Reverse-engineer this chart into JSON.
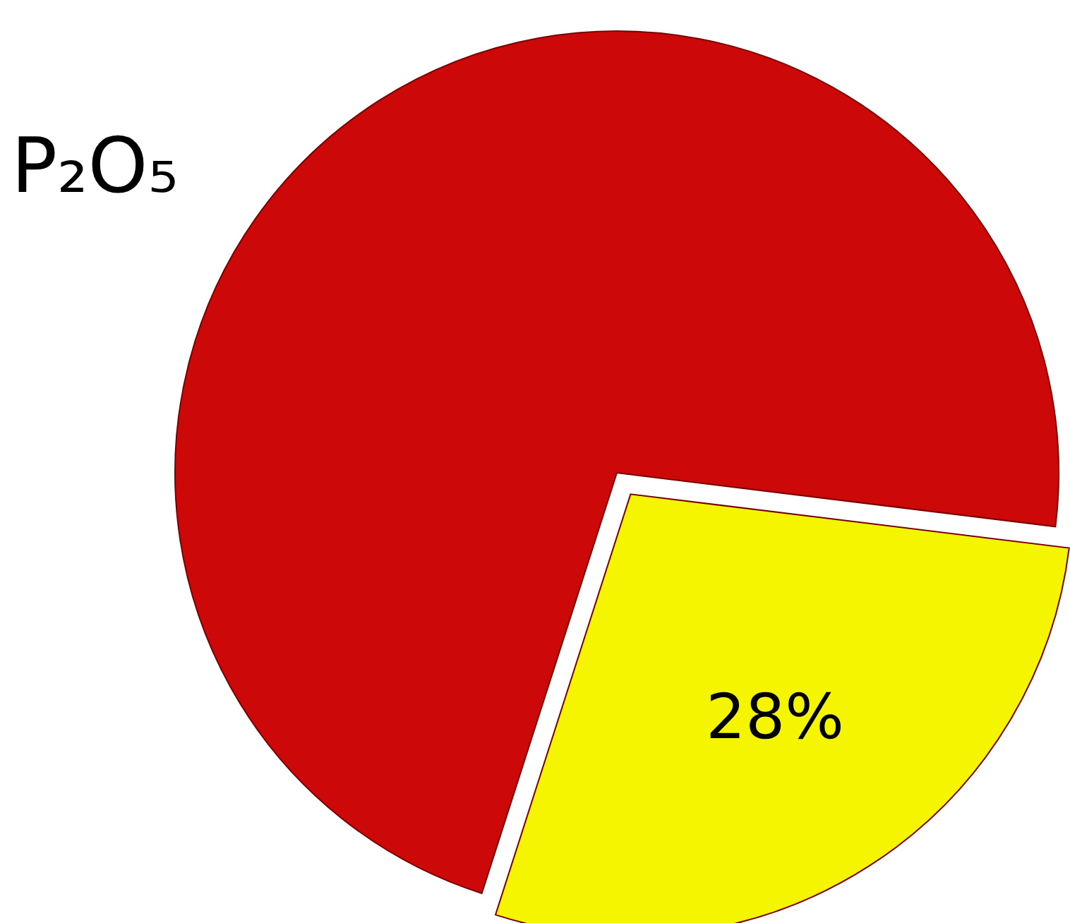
{
  "chart_data": {
    "type": "pie",
    "title": "P₂O₅",
    "categories": [
      null,
      null
    ],
    "values": [
      72,
      28
    ],
    "colors": [
      "#cc0808",
      "#f5f500"
    ],
    "value_labels": [
      null,
      "28%"
    ]
  }
}
